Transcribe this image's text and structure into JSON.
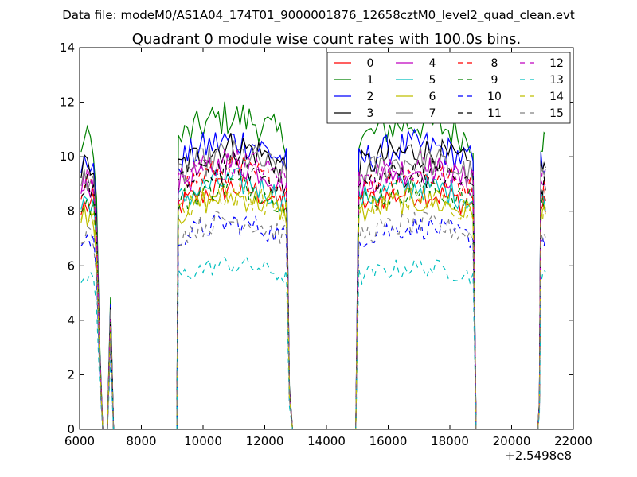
{
  "window": {
    "suptitle": "Data file: modeM0/AS1A04_174T01_9000001876_12658cztM0_level2_quad_clean.evt"
  },
  "chart_data": {
    "type": "line",
    "title": "Quadrant 0 module wise count rates with 100.0s bins.",
    "xlabel": "",
    "ylabel": "",
    "x_offset_label": "+2.5498e8",
    "xlim": [
      6000,
      22000
    ],
    "ylim": [
      0,
      14
    ],
    "xticks": [
      6000,
      8000,
      10000,
      12000,
      14000,
      16000,
      18000,
      20000,
      22000
    ],
    "yticks": [
      0,
      2,
      4,
      6,
      8,
      10,
      12,
      14
    ],
    "grid": false,
    "legend": {
      "position": "top-right",
      "columns": 4
    },
    "time_windows": [
      {
        "start": 6150,
        "end": 6450
      },
      {
        "start": 9200,
        "end": 12700
      },
      {
        "start": 15050,
        "end": 18750
      },
      {
        "start": 20950,
        "end": 21100
      }
    ],
    "spikes": [
      {
        "x": 7000,
        "relative_level": 0.45
      }
    ],
    "series": [
      {
        "name": "0",
        "color": "#ff0000",
        "dash": "solid",
        "level": 8.2
      },
      {
        "name": "1",
        "color": "#008000",
        "dash": "solid",
        "level": 10.6
      },
      {
        "name": "2",
        "color": "#0000ff",
        "dash": "solid",
        "level": 9.8
      },
      {
        "name": "3",
        "color": "#000000",
        "dash": "solid",
        "level": 9.6
      },
      {
        "name": "4",
        "color": "#bf00bf",
        "dash": "solid",
        "level": 9.0
      },
      {
        "name": "5",
        "color": "#00bfbf",
        "dash": "solid",
        "level": 8.4
      },
      {
        "name": "6",
        "color": "#bfbf00",
        "dash": "solid",
        "level": 7.9
      },
      {
        "name": "7",
        "color": "#808080",
        "dash": "solid",
        "level": 9.3
      },
      {
        "name": "8",
        "color": "#ff0000",
        "dash": "dashed",
        "level": 8.8
      },
      {
        "name": "9",
        "color": "#008000",
        "dash": "dashed",
        "level": 8.3
      },
      {
        "name": "10",
        "color": "#0000ff",
        "dash": "dashed",
        "level": 7.0
      },
      {
        "name": "11",
        "color": "#000000",
        "dash": "dashed",
        "level": 8.9
      },
      {
        "name": "12",
        "color": "#bf00bf",
        "dash": "dashed",
        "level": 9.1
      },
      {
        "name": "13",
        "color": "#00bfbf",
        "dash": "dashed",
        "level": 5.6
      },
      {
        "name": "14",
        "color": "#bfbf00",
        "dash": "dashed",
        "level": 8.0
      },
      {
        "name": "15",
        "color": "#808080",
        "dash": "dashed",
        "level": 7.1
      }
    ]
  }
}
